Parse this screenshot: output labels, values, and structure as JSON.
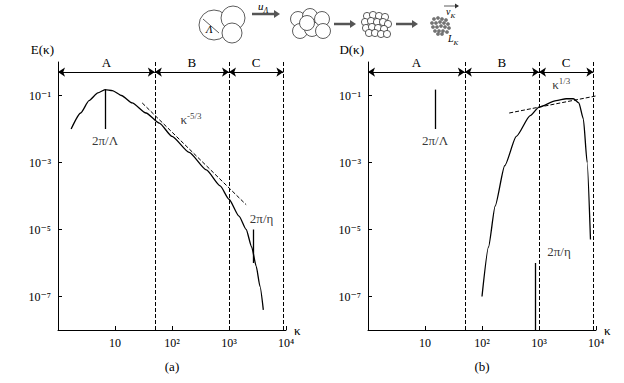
{
  "chart_data": [
    {
      "type": "line",
      "caption": "(a)",
      "y_label": "E(κ)",
      "x_label": "κ",
      "color": "#000000",
      "log": true,
      "grid": false,
      "xlim": [
        1,
        10000
      ],
      "xticks": [
        10,
        {
          "value": 100,
          "label": "10²"
        },
        {
          "value": 1000,
          "label": "10³"
        },
        {
          "value": 10000,
          "label": "10⁴"
        }
      ],
      "ylim": [
        1e-08,
        1
      ],
      "yticks": [
        {
          "value": 0.1,
          "label": "10⁻¹"
        },
        {
          "value": 0.001,
          "label": "10⁻³"
        },
        {
          "value": 1e-05,
          "label": "10⁻⁵"
        },
        {
          "value": 1e-07,
          "label": "10⁻⁷"
        }
      ],
      "x": [
        1.7,
        2.5,
        3.5,
        5,
        6.7,
        9,
        13,
        20,
        35,
        60,
        100,
        200,
        400,
        700,
        1000,
        1500,
        2000,
        2500,
        3000,
        3500,
        4000
      ],
      "values": [
        0.01,
        0.03,
        0.07,
        0.12,
        0.15,
        0.14,
        0.1,
        0.06,
        0.03,
        0.015,
        0.006,
        0.002,
        0.0006,
        0.0002,
        8e-05,
        2.5e-05,
        1e-05,
        3e-06,
        8e-07,
        2e-07,
        4e-08
      ],
      "reference_line": {
        "x": [
          30,
          2000
        ],
        "values": [
          0.06,
          5.5e-05
        ],
        "line_style": "dashed",
        "label": {
          "base": "κ",
          "exponent": "-5/3"
        }
      },
      "regions": [
        {
          "label": "A",
          "from": 1,
          "to": 50
        },
        {
          "label": "B",
          "from": 50,
          "to": 1000
        },
        {
          "label": "C",
          "from": 1000,
          "to": 9000
        }
      ],
      "markers": [
        {
          "label": "2π/Λ",
          "x": 6.7,
          "y": [
            0.15,
            0.01
          ]
        },
        {
          "label": "2π/η",
          "x": 2700,
          "y": [
            1e-06,
            1e-05
          ]
        }
      ]
    },
    {
      "type": "line",
      "caption": "(b)",
      "y_label": "D(κ)",
      "x_label": "κ",
      "color": "#000000",
      "log": true,
      "grid": false,
      "xlim": [
        1,
        10000
      ],
      "xticks": [
        10,
        {
          "value": 100,
          "label": "10²"
        },
        {
          "value": 1000,
          "label": "10³"
        },
        {
          "value": 10000,
          "label": "10⁴"
        }
      ],
      "ylim": [
        1e-08,
        1
      ],
      "yticks": [
        {
          "value": 0.1,
          "label": "10⁻¹"
        },
        {
          "value": 0.001,
          "label": "10⁻³"
        },
        {
          "value": 1e-05,
          "label": "10⁻⁵"
        },
        {
          "value": 1e-07,
          "label": "10⁻⁷"
        }
      ],
      "x": [
        100,
        130,
        170,
        250,
        400,
        700,
        1000,
        2000,
        3000,
        4000,
        5000,
        6000,
        7000,
        8000
      ],
      "values": [
        1e-07,
        3e-06,
        5e-05,
        0.0008,
        0.006,
        0.025,
        0.045,
        0.07,
        0.08,
        0.08,
        0.06,
        0.02,
        0.001,
        5e-06
      ],
      "reference_line": {
        "x": [
          300,
          10000
        ],
        "values": [
          0.03,
          0.097
        ],
        "line_style": "dashed",
        "label": {
          "base": "κ",
          "exponent": "1/3"
        }
      },
      "regions": [
        {
          "label": "A",
          "from": 1,
          "to": 50
        },
        {
          "label": "B",
          "from": 50,
          "to": 1000
        },
        {
          "label": "C",
          "from": 1000,
          "to": 9000
        }
      ],
      "markers": [
        {
          "label": "2π/Λ",
          "x": 15,
          "y": [
            0.15,
            0.01
          ]
        },
        {
          "label": "2π/η",
          "x": 850,
          "y": [
            1e-08,
            1e-06
          ]
        }
      ]
    }
  ],
  "illustration": {
    "eddy_size": "Λ",
    "velocity_large": {
      "base": "u",
      "sub": "Λ"
    },
    "velocity_small": {
      "base": "v",
      "sub": "K"
    },
    "length_small": {
      "base": "L",
      "sub": "K"
    }
  }
}
